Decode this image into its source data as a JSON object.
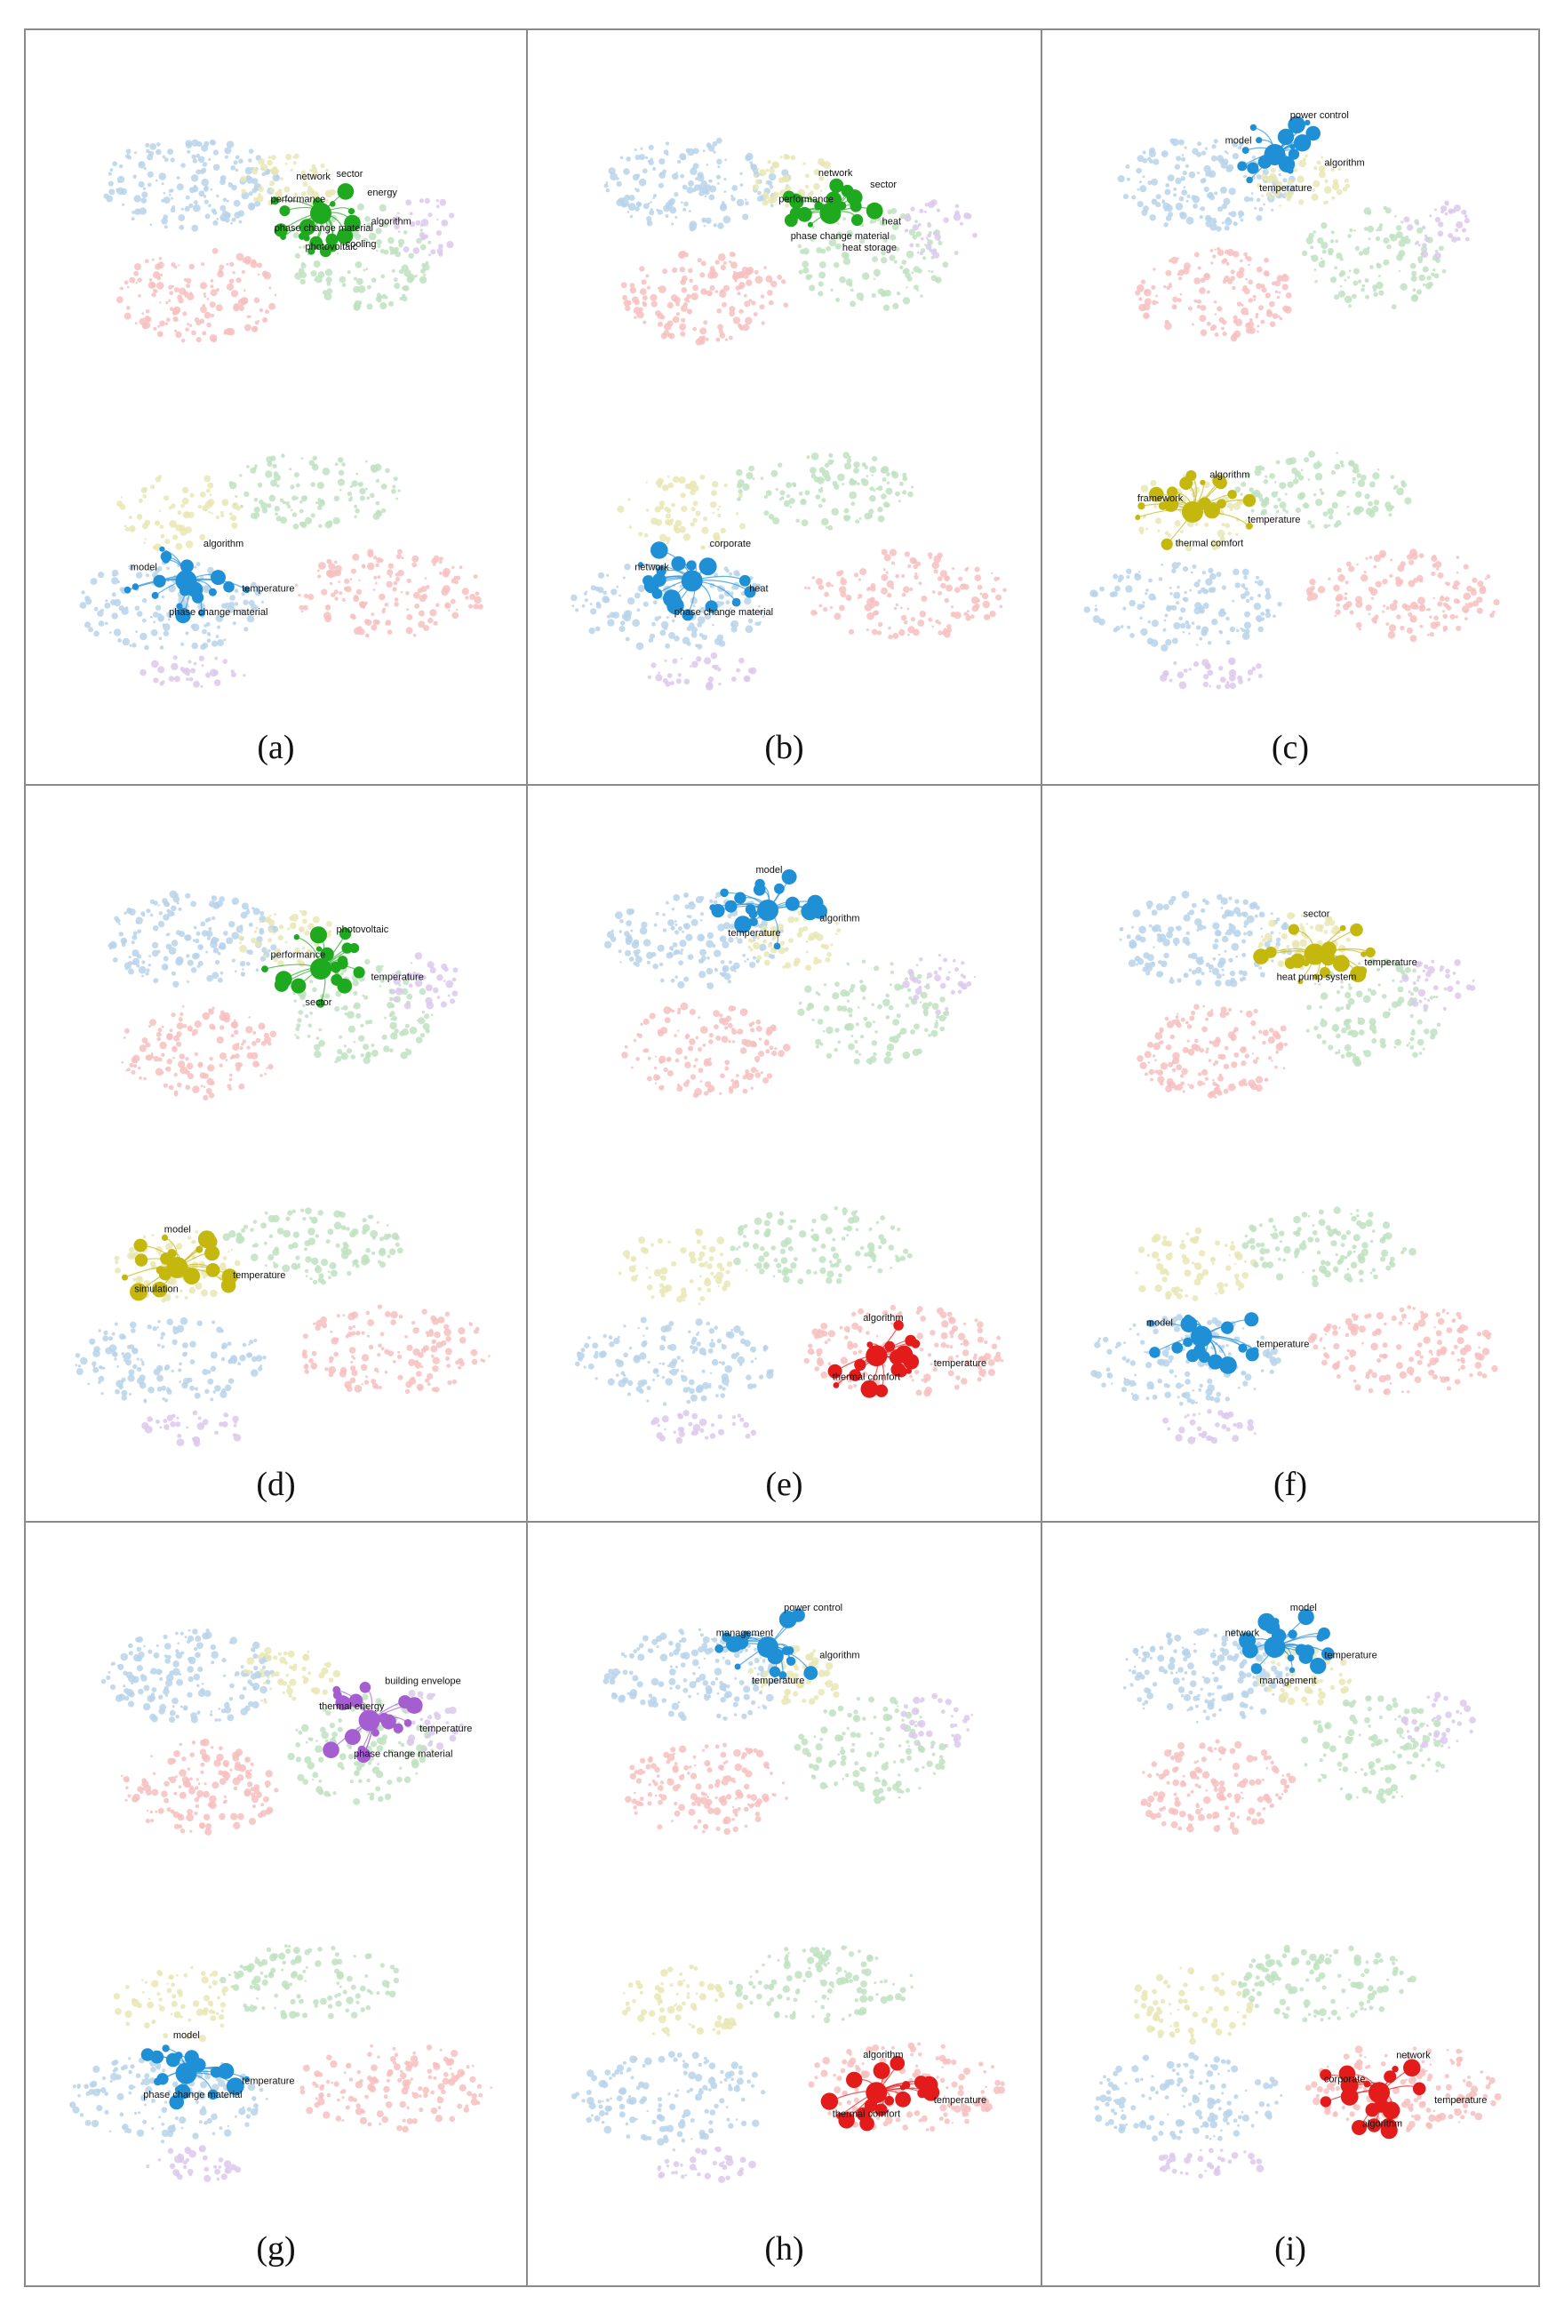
{
  "figure": {
    "palette": {
      "blue": "#1f8fd6",
      "green": "#1fa91f",
      "yellow": "#c4b70e",
      "red": "#e31b1b",
      "purple": "#a45ed0",
      "bg_blue": "#b9d4ea",
      "bg_green": "#bfe2c1",
      "bg_yellow": "#e9e6b4",
      "bg_red": "#f7c0c0",
      "bg_purple": "#dcc9ec"
    },
    "panels": [
      {
        "label": "(a)",
        "top_labels": [
          "algorithm",
          "cooling",
          "photovoltaic",
          "phase change material",
          "performance",
          "network",
          "sector",
          "energy"
        ],
        "bottom_labels": [
          "temperature",
          "phase change material",
          "model",
          "algorithm"
        ],
        "top_focus": "green",
        "bottom_focus": "blue"
      },
      {
        "label": "(b)",
        "top_labels": [
          "heat",
          "heat storage",
          "phase change material",
          "performance",
          "network",
          "sector"
        ],
        "bottom_labels": [
          "heat",
          "phase change material",
          "network",
          "corporate"
        ],
        "top_focus": "green",
        "bottom_focus": "blue"
      },
      {
        "label": "(c)",
        "top_labels": [
          "algorithm",
          "temperature",
          "model",
          "power control"
        ],
        "bottom_labels": [
          "temperature",
          "thermal comfort",
          "framework",
          "algorithm"
        ],
        "top_focus": "blue",
        "bottom_focus": "yellow"
      },
      {
        "label": "(d)",
        "top_labels": [
          "temperature",
          "sector",
          "performance",
          "photovoltaic"
        ],
        "bottom_labels": [
          "temperature",
          "simulation",
          "model"
        ],
        "top_focus": "green",
        "bottom_focus": "yellow"
      },
      {
        "label": "(e)",
        "top_labels": [
          "algorithm",
          "temperature",
          "model"
        ],
        "bottom_labels": [
          "temperature",
          "thermal comfort",
          "algorithm"
        ],
        "top_focus": "blue",
        "bottom_focus": "red"
      },
      {
        "label": "(f)",
        "top_labels": [
          "temperature",
          "heat pump system",
          "sector"
        ],
        "bottom_labels": [
          "temperature",
          "model"
        ],
        "top_focus": "yellow",
        "bottom_focus": "blue"
      },
      {
        "label": "(g)",
        "top_labels": [
          "temperature",
          "phase change material",
          "thermal energy",
          "building envelope"
        ],
        "bottom_labels": [
          "temperature",
          "phase change material",
          "model"
        ],
        "top_focus": "purple",
        "bottom_focus": "blue"
      },
      {
        "label": "(h)",
        "top_labels": [
          "algorithm",
          "temperature",
          "management",
          "power control"
        ],
        "bottom_labels": [
          "temperature",
          "thermal comfort",
          "algorithm"
        ],
        "top_focus": "blue",
        "bottom_focus": "red"
      },
      {
        "label": "(i)",
        "top_labels": [
          "temperature",
          "management",
          "network",
          "model"
        ],
        "bottom_labels": [
          "temperature",
          "algorithm",
          "corporate",
          "network"
        ],
        "top_focus": "blue",
        "bottom_focus": "red"
      }
    ]
  }
}
